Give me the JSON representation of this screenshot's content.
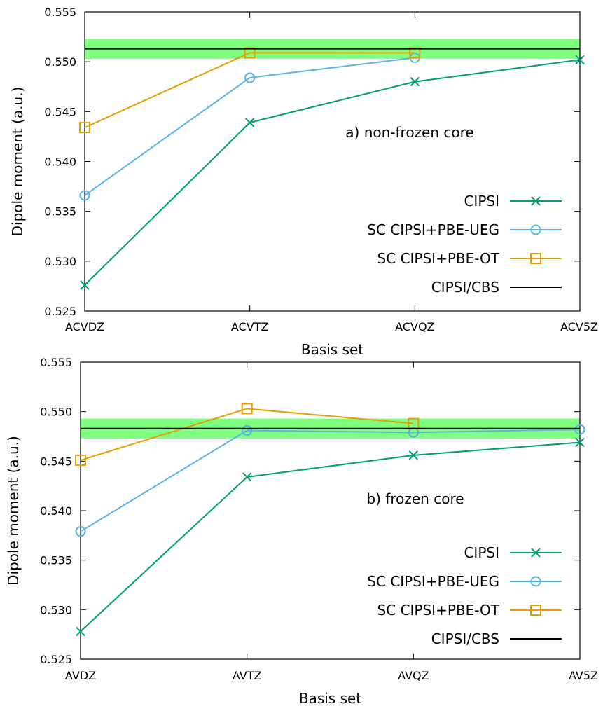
{
  "chart_data": [
    {
      "type": "line",
      "categories": [
        "ACVDZ",
        "ACVTZ",
        "ACVQZ",
        "ACV5Z"
      ],
      "xlabel": "Basis set",
      "ylabel": "Dipole moment (a.u.)",
      "ylim": [
        0.525,
        0.555
      ],
      "yticks": [
        "0.525",
        "0.530",
        "0.535",
        "0.540",
        "0.545",
        "0.550",
        "0.555"
      ],
      "annotation": "a) non-frozen core",
      "legend_position": "right",
      "band": {
        "center": 0.5513,
        "low": 0.5503,
        "high": 0.5523,
        "color": "#7fff7f"
      },
      "series": [
        {
          "name": "CIPSI",
          "marker": "x",
          "color": "#009e73",
          "values": [
            0.5276,
            0.5439,
            0.548,
            0.5502
          ]
        },
        {
          "name": "SC CIPSI+PBE-UEG",
          "marker": "circle",
          "color": "#56b4e9",
          "values": [
            0.5366,
            0.5484,
            0.5504,
            null
          ]
        },
        {
          "name": "SC CIPSI+PBE-OT",
          "marker": "square",
          "color": "#e69f00",
          "values": [
            0.5434,
            0.5509,
            0.5509,
            null
          ]
        },
        {
          "name": "CIPSI/CBS",
          "marker": "none",
          "color": "#000000",
          "constant": 0.5513
        }
      ]
    },
    {
      "type": "line",
      "categories": [
        "AVDZ",
        "AVTZ",
        "AVQZ",
        "AV5Z"
      ],
      "xlabel": "Basis set",
      "ylabel": "Dipole moment (a.u.)",
      "ylim": [
        0.525,
        0.555
      ],
      "yticks": [
        "0.525",
        "0.530",
        "0.535",
        "0.540",
        "0.545",
        "0.550",
        "0.555"
      ],
      "annotation": "b) frozen core",
      "legend_position": "right",
      "band": {
        "center": 0.5483,
        "low": 0.5473,
        "high": 0.5493,
        "color": "#7fff7f"
      },
      "series": [
        {
          "name": "CIPSI",
          "marker": "x",
          "color": "#009e73",
          "values": [
            0.5278,
            0.5434,
            0.5456,
            0.5469
          ]
        },
        {
          "name": "SC CIPSI+PBE-UEG",
          "marker": "circle",
          "color": "#56b4e9",
          "values": [
            0.5379,
            0.5481,
            0.5479,
            0.5482
          ]
        },
        {
          "name": "SC CIPSI+PBE-OT",
          "marker": "square",
          "color": "#e69f00",
          "values": [
            0.5451,
            0.5503,
            0.5488,
            null
          ]
        },
        {
          "name": "CIPSI/CBS",
          "marker": "none",
          "color": "#000000",
          "constant": 0.5483
        }
      ]
    }
  ]
}
